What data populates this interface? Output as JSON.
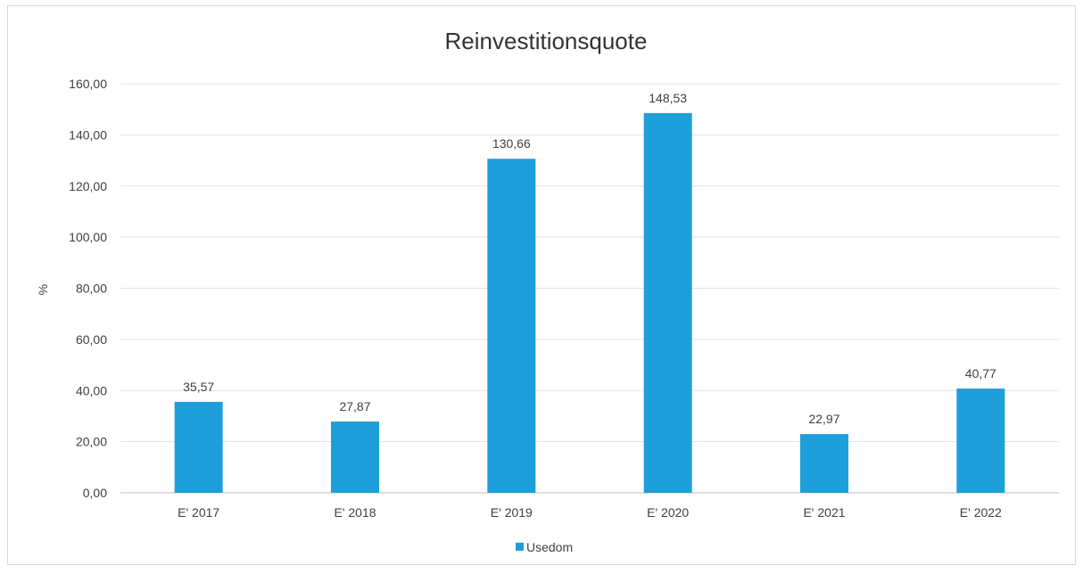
{
  "chart_data": {
    "type": "bar",
    "title": "Reinvestitionsquote",
    "xlabel": "",
    "ylabel": "%",
    "categories": [
      "E' 2017",
      "E' 2018",
      "E' 2019",
      "E' 2020",
      "E' 2021",
      "E' 2022"
    ],
    "series": [
      {
        "name": "Usedom",
        "values": [
          35.57,
          27.87,
          130.66,
          148.53,
          22.97,
          40.77
        ],
        "value_labels": [
          "35,57",
          "27,87",
          "130,66",
          "148,53",
          "22,97",
          "40,77"
        ],
        "color": "#1f9fd9"
      }
    ],
    "ylim": [
      0,
      160
    ],
    "yticks": [
      0,
      20,
      40,
      60,
      80,
      100,
      120,
      140,
      160
    ],
    "ytick_labels": [
      "0,00",
      "20,00",
      "40,00",
      "60,00",
      "80,00",
      "100,00",
      "120,00",
      "140,00",
      "160,00"
    ],
    "grid": true,
    "legend_position": "bottom"
  }
}
